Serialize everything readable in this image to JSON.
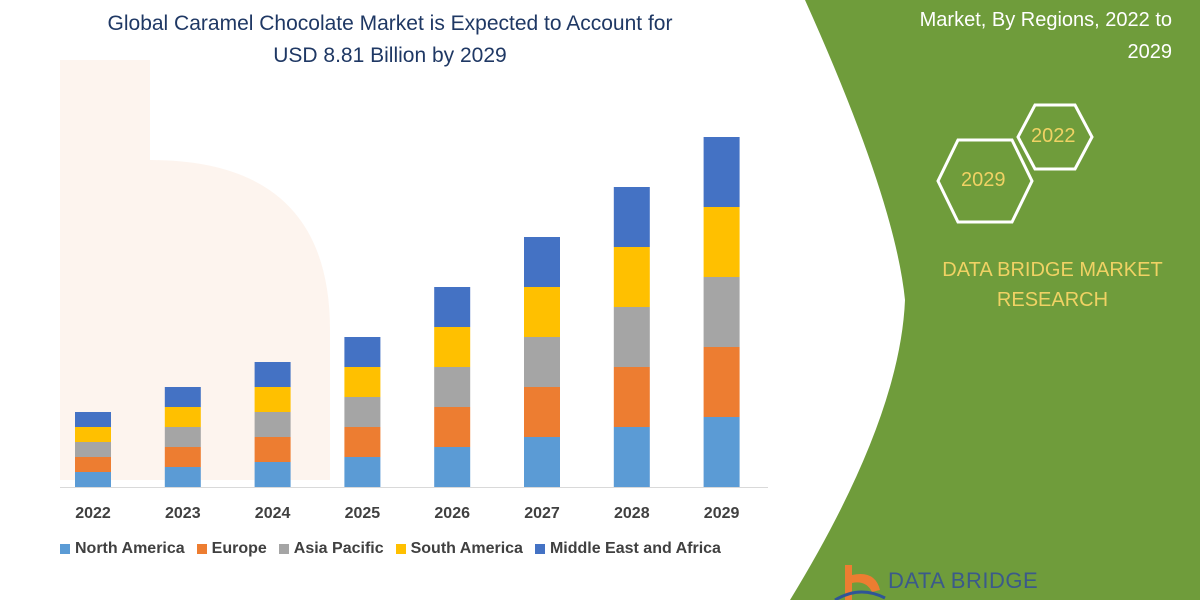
{
  "title_lines": [
    "Global Caramel Chocolate Market is Expected to Account for",
    "USD 8.81 Billion by 2029"
  ],
  "side_title_lines": [
    "Market, By Regions, 2022 to",
    "2029"
  ],
  "hexagons": [
    "2022",
    "2029"
  ],
  "brand_lines": [
    "DATA BRIDGE MARKET",
    "RESEARCH"
  ],
  "logo_text": "DATA BRIDGE",
  "colors": {
    "panel_green": "#6f9c3b",
    "title_blue": "#1f3864",
    "accent_yellow": "#f0d264"
  },
  "chart_data": {
    "type": "bar",
    "stacked": true,
    "categories": [
      "2022",
      "2023",
      "2024",
      "2025",
      "2026",
      "2027",
      "2028",
      "2029"
    ],
    "series": [
      {
        "name": "North America",
        "color": "#5b9bd5",
        "values": [
          15,
          20,
          25,
          30,
          40,
          50,
          60,
          70
        ]
      },
      {
        "name": "Europe",
        "color": "#ed7d31",
        "values": [
          15,
          20,
          25,
          30,
          40,
          50,
          60,
          70
        ]
      },
      {
        "name": "Asia Pacific",
        "color": "#a5a5a5",
        "values": [
          15,
          20,
          25,
          30,
          40,
          50,
          60,
          70
        ]
      },
      {
        "name": "South America",
        "color": "#ffc000",
        "values": [
          15,
          20,
          25,
          30,
          40,
          50,
          60,
          70
        ]
      },
      {
        "name": "Middle East and Africa",
        "color": "#4472c4",
        "values": [
          15,
          20,
          25,
          30,
          40,
          50,
          60,
          70
        ]
      }
    ],
    "ylim": [
      0,
      360
    ],
    "y_axis_shown": false,
    "grid": false,
    "legend_position": "bottom"
  }
}
